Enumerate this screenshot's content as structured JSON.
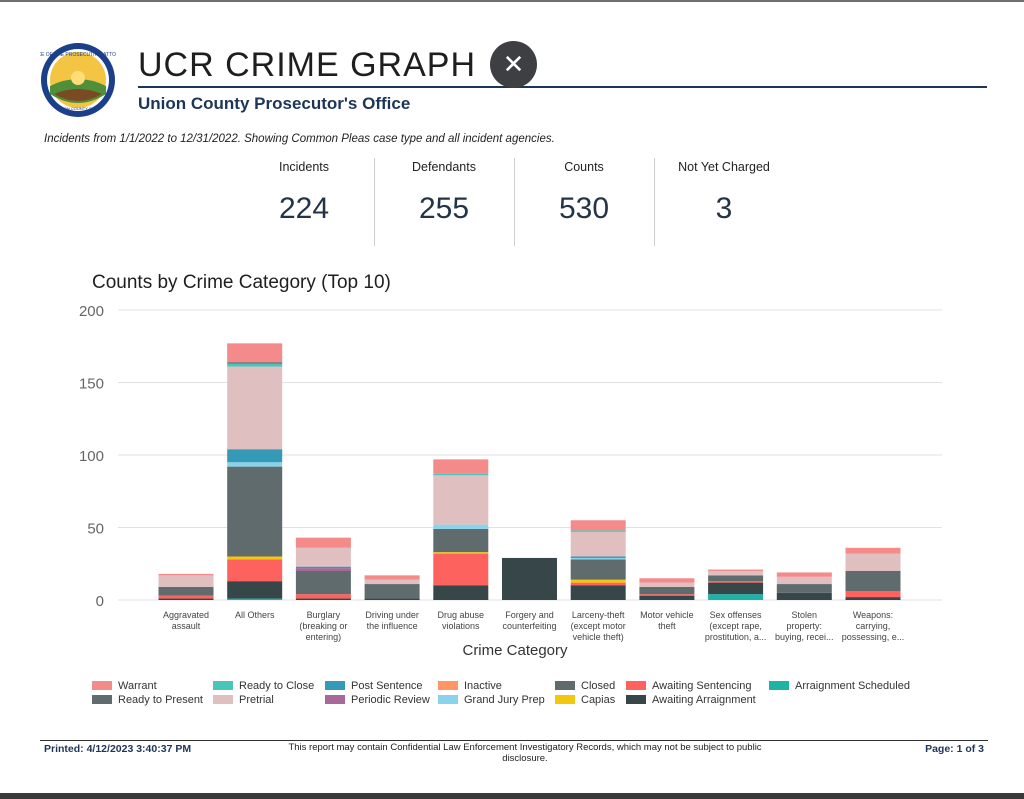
{
  "header": {
    "title": "UCR CRIME GRAPH",
    "subtitle": "Union County Prosecutor's Office",
    "close_icon": "close-icon"
  },
  "info_line": "Incidents from 1/1/2022 to 12/31/2022. Showing Common Pleas case type and all incident agencies.",
  "kpis": [
    {
      "label": "Incidents",
      "value": "224"
    },
    {
      "label": "Defendants",
      "value": "255"
    },
    {
      "label": "Counts",
      "value": "530"
    },
    {
      "label": "Not Yet Charged",
      "value": "3"
    }
  ],
  "chart_data": {
    "type": "bar",
    "stacked": true,
    "title": "Counts by Crime Category (Top 10)",
    "xlabel": "Crime Category",
    "ylabel": "",
    "ylim": [
      0,
      200
    ],
    "yticks": [
      0,
      50,
      100,
      150,
      200
    ],
    "grid": true,
    "legend_position": "bottom",
    "categories": [
      [
        "Aggravated",
        "assault"
      ],
      [
        "All Others"
      ],
      [
        "Burglary",
        "(breaking or",
        "entering)"
      ],
      [
        "Driving under",
        "the influence"
      ],
      [
        "Drug abuse",
        "violations"
      ],
      [
        "Forgery and",
        "counterfeiting"
      ],
      [
        "Larceny-theft",
        "(except motor",
        "vehicle theft)"
      ],
      [
        "Motor vehicle",
        "theft"
      ],
      [
        "Sex offenses",
        "(except rape,",
        "prostitution, a..."
      ],
      [
        "Stolen",
        "property:",
        "buying, recei..."
      ],
      [
        "Weapons:",
        "carrying,",
        "possessing, e..."
      ]
    ],
    "series": [
      {
        "name": "Arraignment Scheduled",
        "color": "#1db3a6",
        "values": [
          0,
          1,
          0,
          0,
          0,
          0,
          0,
          0,
          4,
          0,
          0
        ]
      },
      {
        "name": "Awaiting Arraignment",
        "color": "#374649",
        "values": [
          1,
          12,
          1,
          1,
          10,
          29,
          10,
          3,
          8,
          5,
          2
        ]
      },
      {
        "name": "Awaiting Sentencing",
        "color": "#fd625e",
        "values": [
          2,
          15,
          3,
          0,
          22,
          0,
          2,
          1,
          1,
          0,
          4
        ]
      },
      {
        "name": "Capias",
        "color": "#f2c80f",
        "values": [
          0,
          2,
          0,
          0,
          1,
          0,
          2,
          0,
          0,
          0,
          0
        ]
      },
      {
        "name": "Closed",
        "color": "#5f6b6d",
        "values": [
          6,
          62,
          16,
          10,
          16,
          0,
          14,
          5,
          4,
          6,
          14
        ]
      },
      {
        "name": "Grand Jury Prep",
        "color": "#8ad4eb",
        "values": [
          0,
          3,
          0,
          0,
          3,
          0,
          1,
          0,
          0,
          0,
          0
        ]
      },
      {
        "name": "Inactive",
        "color": "#fe9666",
        "values": [
          0,
          0,
          0,
          0,
          0,
          0,
          0,
          0,
          0,
          0,
          0
        ]
      },
      {
        "name": "Periodic Review",
        "color": "#a66999",
        "values": [
          0,
          0,
          2,
          0,
          0,
          0,
          0,
          0,
          0,
          0,
          0
        ]
      },
      {
        "name": "Post Sentence",
        "color": "#3599b8",
        "values": [
          0,
          9,
          1,
          0,
          0,
          0,
          1,
          0,
          0,
          0,
          0
        ]
      },
      {
        "name": "Pretrial",
        "color": "#dfbfbf",
        "values": [
          8,
          57,
          13,
          3,
          34,
          0,
          17,
          3,
          3,
          5,
          12
        ]
      },
      {
        "name": "Ready to Close",
        "color": "#4ac5bb",
        "values": [
          0,
          2,
          0,
          0,
          1,
          0,
          1,
          0,
          0,
          0,
          0
        ]
      },
      {
        "name": "Ready to Present",
        "color": "#5f6b6d",
        "values": [
          0,
          1,
          0,
          0,
          0,
          0,
          0,
          0,
          0,
          0,
          0
        ]
      },
      {
        "name": "Warrant",
        "color": "#f48a8a",
        "values": [
          1,
          13,
          7,
          3,
          10,
          0,
          7,
          3,
          1,
          3,
          4
        ]
      }
    ]
  },
  "legend_rows": [
    [
      "Warrant",
      "Ready to Close",
      "Post Sentence",
      "Inactive",
      "Closed",
      "Awaiting Sentencing",
      "Arraignment Scheduled"
    ],
    [
      "Ready to Present",
      "Pretrial",
      "Periodic Review",
      "Grand Jury Prep",
      "Capias",
      "Awaiting Arraignment"
    ]
  ],
  "footer": {
    "printed": "Printed: 4/12/2023 3:40:37 PM",
    "disclaimer": "This report may contain Confidential Law Enforcement Investigatory Records, which may not be subject to public disclosure.",
    "page": "Page: 1 of 3"
  }
}
